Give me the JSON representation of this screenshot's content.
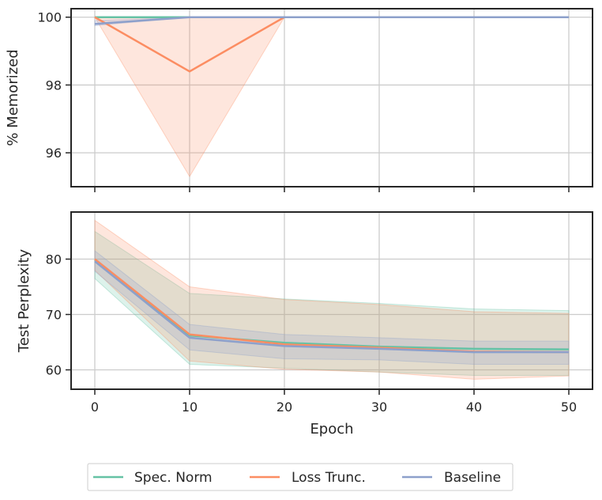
{
  "chart_data": [
    {
      "type": "line",
      "x": [
        0,
        10,
        20,
        30,
        40,
        50
      ],
      "xlim": [
        -2.5,
        52.5
      ],
      "ylim": [
        95,
        100.25
      ],
      "yticks": [
        96,
        98,
        100
      ],
      "ylabel": "% Memorized",
      "xlabel": "",
      "grid": true,
      "series": [
        {
          "name": "Spec. Norm",
          "color": "#66c2a5",
          "values": [
            100,
            100,
            100,
            100,
            100,
            100
          ],
          "lower": [
            100,
            100,
            100,
            100,
            100,
            100
          ],
          "upper": [
            100,
            100,
            100,
            100,
            100,
            100
          ]
        },
        {
          "name": "Loss Trunc.",
          "color": "#fc8d62",
          "values": [
            100,
            98.4,
            100,
            100,
            100,
            100
          ],
          "lower": [
            100,
            95.3,
            100,
            100,
            100,
            100
          ],
          "upper": [
            100,
            100,
            100,
            100,
            100,
            100
          ]
        },
        {
          "name": "Baseline",
          "color": "#8da0cb",
          "values": [
            99.8,
            100,
            100,
            100,
            100,
            100
          ],
          "lower": [
            99.75,
            100,
            100,
            100,
            100,
            100
          ],
          "upper": [
            99.9,
            100,
            100,
            100,
            100,
            100
          ]
        }
      ]
    },
    {
      "type": "line",
      "x": [
        0,
        10,
        20,
        30,
        40,
        50
      ],
      "xticks": [
        0,
        10,
        20,
        30,
        40,
        50
      ],
      "xlim": [
        -2.5,
        52.5
      ],
      "ylim": [
        56.5,
        88.5
      ],
      "yticks": [
        60,
        70,
        80
      ],
      "ylabel": "Test Perplexity",
      "xlabel": "Epoch",
      "grid": true,
      "series": [
        {
          "name": "Spec. Norm",
          "color": "#66c2a5",
          "values": [
            79.9,
            66.2,
            64.9,
            64.2,
            63.8,
            63.7
          ],
          "lower": [
            76.5,
            61.0,
            60.3,
            59.6,
            59.0,
            59.0
          ],
          "upper": [
            85.0,
            73.8,
            72.8,
            72.0,
            71.0,
            70.7
          ]
        },
        {
          "name": "Loss Trunc.",
          "color": "#fc8d62",
          "values": [
            80.0,
            66.4,
            64.6,
            64.0,
            63.3,
            63.2
          ],
          "lower": [
            78.0,
            61.6,
            60.1,
            59.6,
            58.3,
            58.9
          ],
          "upper": [
            87.0,
            75.0,
            72.7,
            71.8,
            70.5,
            70.2
          ]
        },
        {
          "name": "Baseline",
          "color": "#8da0cb",
          "values": [
            79.6,
            65.8,
            64.3,
            63.8,
            63.2,
            63.2
          ],
          "lower": [
            77.8,
            63.6,
            62.0,
            61.8,
            61.0,
            61.0
          ],
          "upper": [
            81.5,
            68.2,
            66.4,
            65.8,
            65.2,
            65.2
          ]
        }
      ]
    }
  ],
  "legend": {
    "placement": "bottom-center",
    "items": [
      {
        "label": "Spec. Norm",
        "color": "#66c2a5"
      },
      {
        "label": "Loss Trunc.",
        "color": "#fc8d62"
      },
      {
        "label": "Baseline",
        "color": "#8da0cb"
      }
    ]
  }
}
